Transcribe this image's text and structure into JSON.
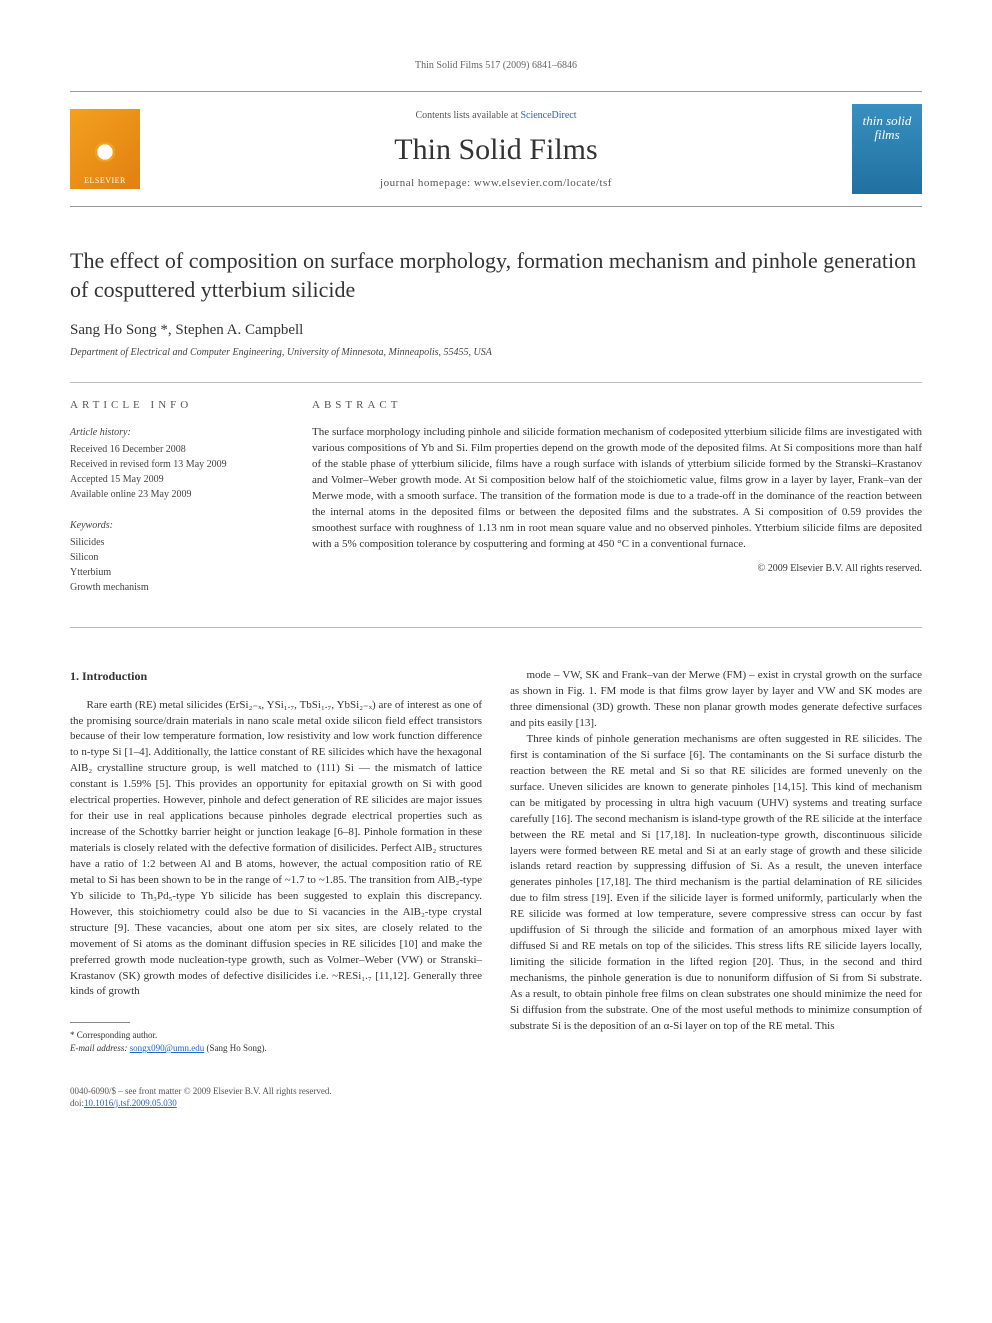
{
  "header_line": "Thin Solid Films 517 (2009) 6841–6846",
  "journal_box": {
    "elsevier": "ELSEVIER",
    "contents_prefix": "Contents lists available at ",
    "contents_link": "ScienceDirect",
    "journal_title": "Thin Solid Films",
    "homepage_label": "journal homepage: www.elsevier.com/locate/tsf",
    "cover_text": "thin solid films"
  },
  "article_title": "The effect of composition on surface morphology, formation mechanism and pinhole generation of cosputtered ytterbium silicide",
  "authors": "Sang Ho Song *, Stephen A. Campbell",
  "affiliation": "Department of Electrical and Computer Engineering, University of Minnesota, Minneapolis, 55455, USA",
  "article_info": {
    "heading": "ARTICLE INFO",
    "history_label": "Article history:",
    "received": "Received 16 December 2008",
    "revised": "Received in revised form 13 May 2009",
    "accepted": "Accepted 15 May 2009",
    "online": "Available online 23 May 2009",
    "keywords_label": "Keywords:",
    "kw1": "Silicides",
    "kw2": "Silicon",
    "kw3": "Ytterbium",
    "kw4": "Growth mechanism"
  },
  "abstract": {
    "heading": "ABSTRACT",
    "text": "The surface morphology including pinhole and silicide formation mechanism of codeposited ytterbium silicide films are investigated with various compositions of Yb and Si. Film properties depend on the growth mode of the deposited films. At Si compositions more than half of the stable phase of ytterbium silicide, films have a rough surface with islands of ytterbium silicide formed by the Stranski–Krastanov and Volmer–Weber growth mode. At Si composition below half of the stoichiometic value, films grow in a layer by layer, Frank–van der Merwe mode, with a smooth surface. The transition of the formation mode is due to a trade-off in the dominance of the reaction between the internal atoms in the deposited films or between the deposited films and the substrates. A Si composition of 0.59 provides the smoothest surface with roughness of 1.13 nm in root mean square value and no observed pinholes. Ytterbium silicide films are deposited with a 5% composition tolerance by cosputtering and forming at 450 °C in a conventional furnace.",
    "copyright": "© 2009 Elsevier B.V. All rights reserved."
  },
  "body": {
    "section1_heading": "1. Introduction",
    "col1_p1": "Rare earth (RE) metal silicides (ErSi₂₋ₓ, YSi₁.₇, TbSi₁.₇, YbSi₂₋ₓ) are of interest as one of the promising source/drain materials in nano scale metal oxide silicon field effect transistors because of their low temperature formation, low resistivity and low work function difference to n-type Si [1–4]. Additionally, the lattice constant of RE silicides which have the hexagonal AlB₂ crystalline structure group, is well matched to (111) Si — the mismatch of lattice constant is 1.59% [5]. This provides an opportunity for epitaxial growth on Si with good electrical properties. However, pinhole and defect generation of RE silicides are major issues for their use in real applications because pinholes degrade electrical properties such as increase of the Schottky barrier height or junction leakage [6–8]. Pinhole formation in these materials is closely related with the defective formation of disilicides. Perfect AlB₂ structures have a ratio of 1:2 between Al and B atoms, however, the actual composition ratio of RE metal to Si has been shown to be in the range of ~1.7 to ~1.85. The transition from AlB₂-type Yb silicide to Th₃Pd₅-type Yb silicide has been suggested to explain this discrepancy. However, this stoichiometry could also be due to Si vacancies in the AlB₂-type crystal structure [9]. These vacancies, about one atom per six sites, are closely related to the movement of Si atoms as the dominant diffusion species in RE silicides [10] and make the preferred growth mode nucleation-type growth, such as Volmer–Weber (VW) or Stranski–Krastanov (SK) growth modes of defective disilicides i.e. ~RESi₁.₇ [11,12]. Generally three kinds of growth",
    "col2_p1": "mode – VW, SK and Frank–van der Merwe (FM) – exist in crystal growth on the surface as shown in Fig. 1. FM mode is that films grow layer by layer and VW and SK modes are three dimensional (3D) growth. These non planar growth modes generate defective surfaces and pits easily [13].",
    "col2_p2": "Three kinds of pinhole generation mechanisms are often suggested in RE silicides. The first is contamination of the Si surface [6]. The contaminants on the Si surface disturb the reaction between the RE metal and Si so that RE silicides are formed unevenly on the surface. Uneven silicides are known to generate pinholes [14,15]. This kind of mechanism can be mitigated by processing in ultra high vacuum (UHV) systems and treating surface carefully [16]. The second mechanism is island-type growth of the RE silicide at the interface between the RE metal and Si [17,18]. In nucleation-type growth, discontinuous silicide layers were formed between RE metal and Si at an early stage of growth and these silicide islands retard reaction by suppressing diffusion of Si. As a result, the uneven interface generates pinholes [17,18]. The third mechanism is the partial delamination of RE silicides due to film stress [19]. Even if the silicide layer is formed uniformly, particularly when the RE silicide was formed at low temperature, severe compressive stress can occur by fast updiffusion of Si through the silicide and formation of an amorphous mixed layer with diffused Si and RE metals on top of the silicides. This stress lifts RE silicide layers locally, limiting the silicide formation in the lifted region [20]. Thus, in the second and third mechanisms, the pinhole generation is due to nonuniform diffusion of Si from Si substrate. As a result, to obtain pinhole free films on clean substrates one should minimize the need for Si diffusion from the substrate. One of the most useful methods to minimize consumption of substrate Si is the deposition of an α-Si layer on top of the RE metal. This"
  },
  "footnote": {
    "corr": "* Corresponding author.",
    "email_label": "E-mail address: ",
    "email": "songx090@umn.edu",
    "email_suffix": " (Sang Ho Song)."
  },
  "footer": {
    "line1": "0040-6090/$ – see front matter © 2009 Elsevier B.V. All rights reserved.",
    "doi_label": "doi:",
    "doi": "10.1016/j.tsf.2009.05.030"
  }
}
